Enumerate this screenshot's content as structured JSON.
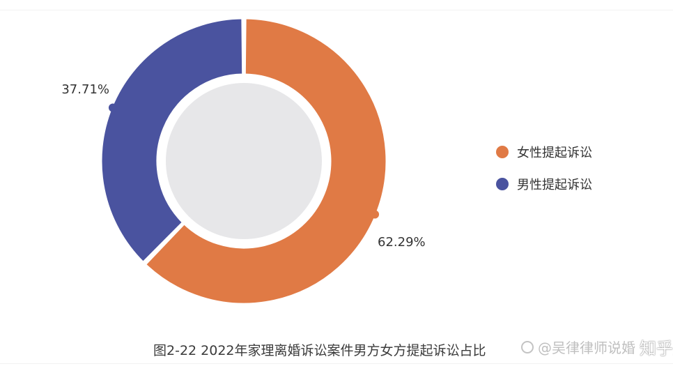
{
  "chart_data": {
    "type": "pie",
    "donut": true,
    "caption": "图2-22  2022年家理离婚诉讼案件男方女方提起诉讼占比",
    "slices": [
      {
        "label": "女性提起诉讼",
        "value": 62.29,
        "value_label": "62.29%",
        "color": "#e07a45"
      },
      {
        "label": "男性提起诉讼",
        "value": 37.71,
        "value_label": "37.71%",
        "color": "#4a539f"
      }
    ],
    "center_color": "#e7e7e9",
    "legend_position": "right"
  },
  "watermark": {
    "text": "@吴律律师说婚",
    "main": "知乎用户"
  }
}
